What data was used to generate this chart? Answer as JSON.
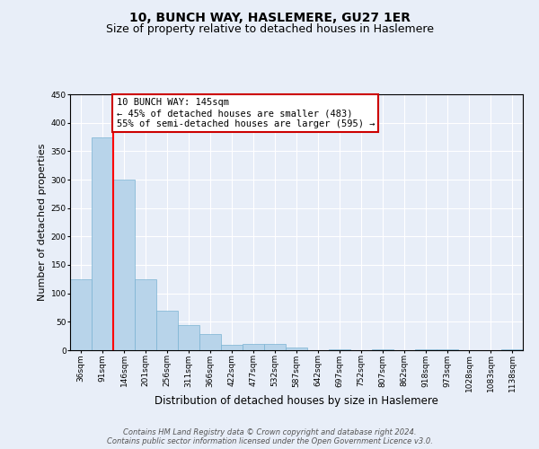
{
  "title": "10, BUNCH WAY, HASLEMERE, GU27 1ER",
  "subtitle": "Size of property relative to detached houses in Haslemere",
  "xlabel": "Distribution of detached houses by size in Haslemere",
  "ylabel": "Number of detached properties",
  "bar_labels": [
    "36sqm",
    "91sqm",
    "146sqm",
    "201sqm",
    "256sqm",
    "311sqm",
    "366sqm",
    "422sqm",
    "477sqm",
    "532sqm",
    "587sqm",
    "642sqm",
    "697sqm",
    "752sqm",
    "807sqm",
    "862sqm",
    "918sqm",
    "973sqm",
    "1028sqm",
    "1083sqm",
    "1138sqm"
  ],
  "bar_heights": [
    125,
    375,
    300,
    125,
    70,
    45,
    28,
    9,
    11,
    11,
    5,
    0,
    2,
    0,
    2,
    0,
    2,
    2,
    0,
    0,
    2
  ],
  "bar_color": "#b8d4ea",
  "bar_edge_color": "#7ab3d3",
  "red_line_index": 2,
  "annotation_line1": "10 BUNCH WAY: 145sqm",
  "annotation_line2": "← 45% of detached houses are smaller (483)",
  "annotation_line3": "55% of semi-detached houses are larger (595) →",
  "annotation_box_color": "#ffffff",
  "annotation_box_edge_color": "#cc0000",
  "ylim": [
    0,
    450
  ],
  "yticks": [
    0,
    50,
    100,
    150,
    200,
    250,
    300,
    350,
    400,
    450
  ],
  "background_color": "#e8eef8",
  "grid_color": "#ffffff",
  "title_fontsize": 10,
  "subtitle_fontsize": 9,
  "xlabel_fontsize": 8.5,
  "ylabel_fontsize": 8,
  "tick_fontsize": 6.5,
  "annotation_fontsize": 7.5,
  "footer_fontsize": 6
}
